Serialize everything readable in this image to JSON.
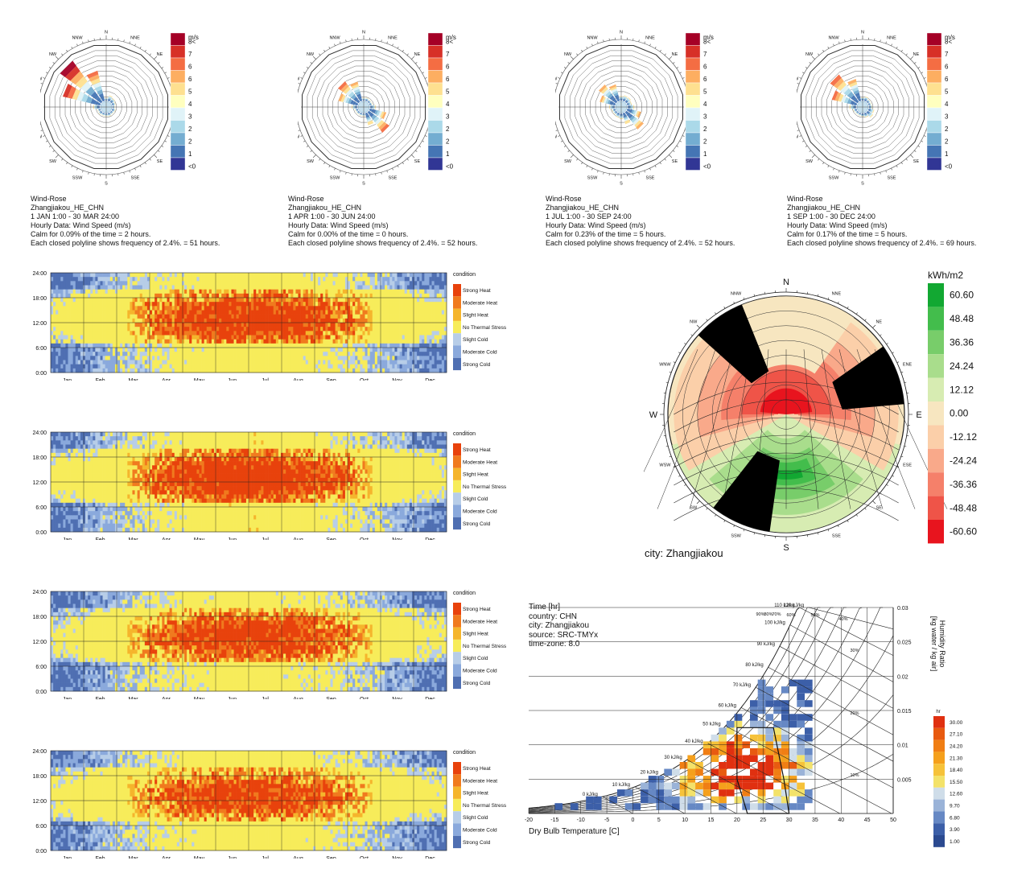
{
  "colors": {
    "wind_scale": [
      "#313695",
      "#4575b4",
      "#74add1",
      "#abd9e9",
      "#e0f3f8",
      "#fee090",
      "#fdae61",
      "#f46d43",
      "#d73027",
      "#a50026"
    ],
    "thermal": {
      "Strong Heat": "#e8420c",
      "Moderate Heat": "#f07a1e",
      "Slight Heat": "#f5b52c",
      "No Thermal Stress": "#f7ec5a",
      "Slight Cold": "#b7cde8",
      "Moderate Cold": "#8aa9dc",
      "Strong Cold": "#4f6fb2"
    },
    "radiation_pos": [
      "#f7e6c0",
      "#d7ecb2",
      "#a9dd8c",
      "#78cd6a",
      "#43bd4c",
      "#12a832"
    ],
    "radiation_neg": [
      "#f7e6c0",
      "#fbcfa9",
      "#f9a98a",
      "#f5806a",
      "#ef5448",
      "#e8141e"
    ],
    "psychro_scale": [
      "#3c5fa8",
      "#6688c4",
      "#9ab3d8",
      "#cfdde9",
      "#f3e26a",
      "#f6c23a",
      "#f5a01c",
      "#f07e14",
      "#e85a10",
      "#e03010"
    ]
  },
  "wind_roses": [
    {
      "title": "Wind-Rose",
      "location": "Zhangjiakou_HE_CHN",
      "period": "1 JAN 1:00 - 30 MAR 24:00",
      "data": "Hourly Data: Wind Speed (m/s)",
      "calm": "Calm for 0.09% of the time = 2 hours.",
      "freq": "Each closed polyline shows frequency of 2.4%. = 51 hours.",
      "petals": [
        0.05,
        0.1,
        0.08,
        0.06,
        0.04,
        0.06,
        0.05,
        0.06,
        0.05,
        0.05,
        0.06,
        0.05,
        0.12,
        0.68,
        0.9,
        0.55
      ]
    },
    {
      "title": "Wind-Rose",
      "location": "Zhangjiakou_HE_CHN",
      "period": "1 APR 1:00 - 30 JUN 24:00",
      "data": "Hourly Data: Wind Speed (m/s)",
      "calm": "Calm for 0.00% of the time = 0 hours.",
      "freq": "Each closed polyline shows frequency of 2.4%. = 52 hours.",
      "petals": [
        0.05,
        0.06,
        0.05,
        0.05,
        0.1,
        0.3,
        0.45,
        0.22,
        0.05,
        0.05,
        0.05,
        0.05,
        0.1,
        0.35,
        0.45,
        0.35
      ]
    },
    {
      "title": "Wind-Rose",
      "location": "Zhangjiakou_HE_CHN",
      "period": "1 JUL 1:00 - 30 SEP 24:00",
      "data": "Hourly Data: Wind Speed (m/s)",
      "calm": "Calm for 0.23% of the time = 5 hours.",
      "freq": "Each closed polyline shows frequency of 2.4%. = 52 hours.",
      "petals": [
        0.08,
        0.1,
        0.1,
        0.08,
        0.12,
        0.25,
        0.38,
        0.2,
        0.1,
        0.08,
        0.06,
        0.06,
        0.1,
        0.28,
        0.38,
        0.3
      ]
    },
    {
      "title": "Wind-Rose",
      "location": "Zhangjiakou_HE_CHN",
      "period": "1 SEP 1:00 - 30 DEC 24:00",
      "data": "Hourly Data: Wind Speed (m/s)",
      "calm": "Calm for 0.17% of the time = 5 hours.",
      "freq": "Each closed polyline shows frequency of 2.4%. = 69 hours.",
      "petals": [
        0.06,
        0.08,
        0.06,
        0.05,
        0.06,
        0.1,
        0.12,
        0.08,
        0.06,
        0.05,
        0.05,
        0.06,
        0.12,
        0.45,
        0.6,
        0.4
      ]
    }
  ],
  "wind_directions": [
    "N",
    "NNE",
    "NE",
    "ENE",
    "E",
    "ESE",
    "SE",
    "SSE",
    "S",
    "SSW",
    "SW",
    "WSW",
    "W",
    "WNW",
    "NW",
    "NNW"
  ],
  "wind_legend": {
    "unit": "m/s",
    "labels": [
      "8<",
      "7",
      "6",
      "6",
      "5",
      "4",
      "3",
      "2",
      "2",
      "1",
      "<0"
    ]
  },
  "heatmaps": {
    "y_ticks": [
      "24:00",
      "18:00",
      "12:00",
      "6:00",
      "0:00"
    ],
    "months": [
      "Jan",
      "Feb",
      "Mar",
      "Apr",
      "May",
      "Jun",
      "Jul",
      "Aug",
      "Sep",
      "Oct",
      "Nov",
      "Dec"
    ],
    "legend_title": "condition",
    "conditions": [
      "Strong Heat",
      "Moderate Heat",
      "Slight Heat",
      "No Thermal Stress",
      "Slight Cold",
      "Moderate Cold",
      "Strong Cold"
    ],
    "panels": [
      {
        "heat": 0.75,
        "cold": 0.6
      },
      {
        "heat": 1.0,
        "cold": 0.45
      },
      {
        "heat": 0.6,
        "cold": 0.85
      },
      {
        "heat": 0.45,
        "cold": 0.55
      }
    ]
  },
  "radiation_rose": {
    "unit": "kWh/m2",
    "legend_values": [
      "60.60",
      "48.48",
      "36.36",
      "24.24",
      "12.12",
      "0.00",
      "-12.12",
      "-24.24",
      "-36.36",
      "-48.48",
      "-60.60"
    ],
    "caption": "city: Zhangjiakou",
    "cardinals": [
      "N",
      "E",
      "S",
      "W"
    ],
    "intercardinals": [
      "NNE",
      "NE",
      "ENE",
      "ESE",
      "SE",
      "SSE",
      "SSW",
      "SW",
      "WSW",
      "WNW",
      "NW",
      "NNW"
    ]
  },
  "psychro": {
    "info": [
      "Time [hr]",
      "country: CHN",
      "city: Zhangjiakou",
      "source: SRC-TMYx",
      "time-zone: 8.0"
    ],
    "x_label": "Dry Bulb Temperature [C]",
    "x_ticks": [
      "-20",
      "-15",
      "-10",
      "-5",
      "0",
      "5",
      "10",
      "15",
      "20",
      "25",
      "30",
      "35",
      "40",
      "45",
      "50"
    ],
    "y_label_1": "Humidity Ratio",
    "y_label_2": "[kg water / kg air]",
    "y_ticks": [
      "0.03",
      "0.025",
      "0.02",
      "0.015",
      "0.01",
      "0.005"
    ],
    "enthalpy_labels": [
      "0 kJ/kg",
      "10 kJ/kg",
      "20 kJ/kg",
      "30 kJ/kg",
      "40 kJ/kg",
      "50 kJ/kg",
      "60 kJ/kg",
      "70 kJ/kg",
      "80 kJ/kg",
      "90 kJ/kg",
      "100 kJ/kg",
      "110 kJ/kg",
      "120 kJ/kg"
    ],
    "rh_labels": [
      "90%",
      "80%",
      "70%",
      "60%",
      "50%",
      "40%",
      "30%",
      "20%",
      "10%"
    ],
    "legend_unit": "hr",
    "legend_values": [
      "30.00",
      "27.10",
      "24.20",
      "21.30",
      "18.40",
      "15.50",
      "12.60",
      "9.70",
      "6.80",
      "3.90",
      "1.00"
    ]
  },
  "chart_data": [
    {
      "type": "wind-rose",
      "title": "Wind-Rose",
      "location": "Zhangjiakou_HE_CHN",
      "series": [
        {
          "name": "1 JAN 1:00 - 30 MAR 24:00",
          "calm_percent": 0.09,
          "calm_hours": 2,
          "ring_hours": 51
        },
        {
          "name": "1 APR 1:00 - 30 JUN 24:00",
          "calm_percent": 0.0,
          "calm_hours": 0,
          "ring_hours": 52
        },
        {
          "name": "1 JUL 1:00 - 30 SEP 24:00",
          "calm_percent": 0.23,
          "calm_hours": 5,
          "ring_hours": 52
        },
        {
          "name": "1 SEP 1:00 - 30 DEC 24:00",
          "calm_percent": 0.17,
          "calm_hours": 5,
          "ring_hours": 69
        }
      ]
    },
    {
      "type": "heatmap",
      "x": [
        "Jan",
        "Feb",
        "Mar",
        "Apr",
        "May",
        "Jun",
        "Jul",
        "Aug",
        "Sep",
        "Oct",
        "Nov",
        "Dec"
      ],
      "y": [
        "0:00",
        "6:00",
        "12:00",
        "18:00",
        "24:00"
      ],
      "categories": [
        "Strong Heat",
        "Moderate Heat",
        "Slight Heat",
        "No Thermal Stress",
        "Slight Cold",
        "Moderate Cold",
        "Strong Cold"
      ],
      "count": 4
    },
    {
      "type": "radial",
      "unit": "kWh/m2",
      "range": [
        -60.6,
        60.6
      ],
      "caption": "city: Zhangjiakou"
    },
    {
      "type": "heatmap",
      "xlabel": "Dry Bulb Temperature [C]",
      "ylabel": "Humidity Ratio [kg water / kg air]",
      "xlim": [
        -20,
        50
      ],
      "ylim": [
        0,
        0.03
      ],
      "legend_range": [
        1.0,
        30.0
      ],
      "legend_unit": "hr"
    }
  ]
}
